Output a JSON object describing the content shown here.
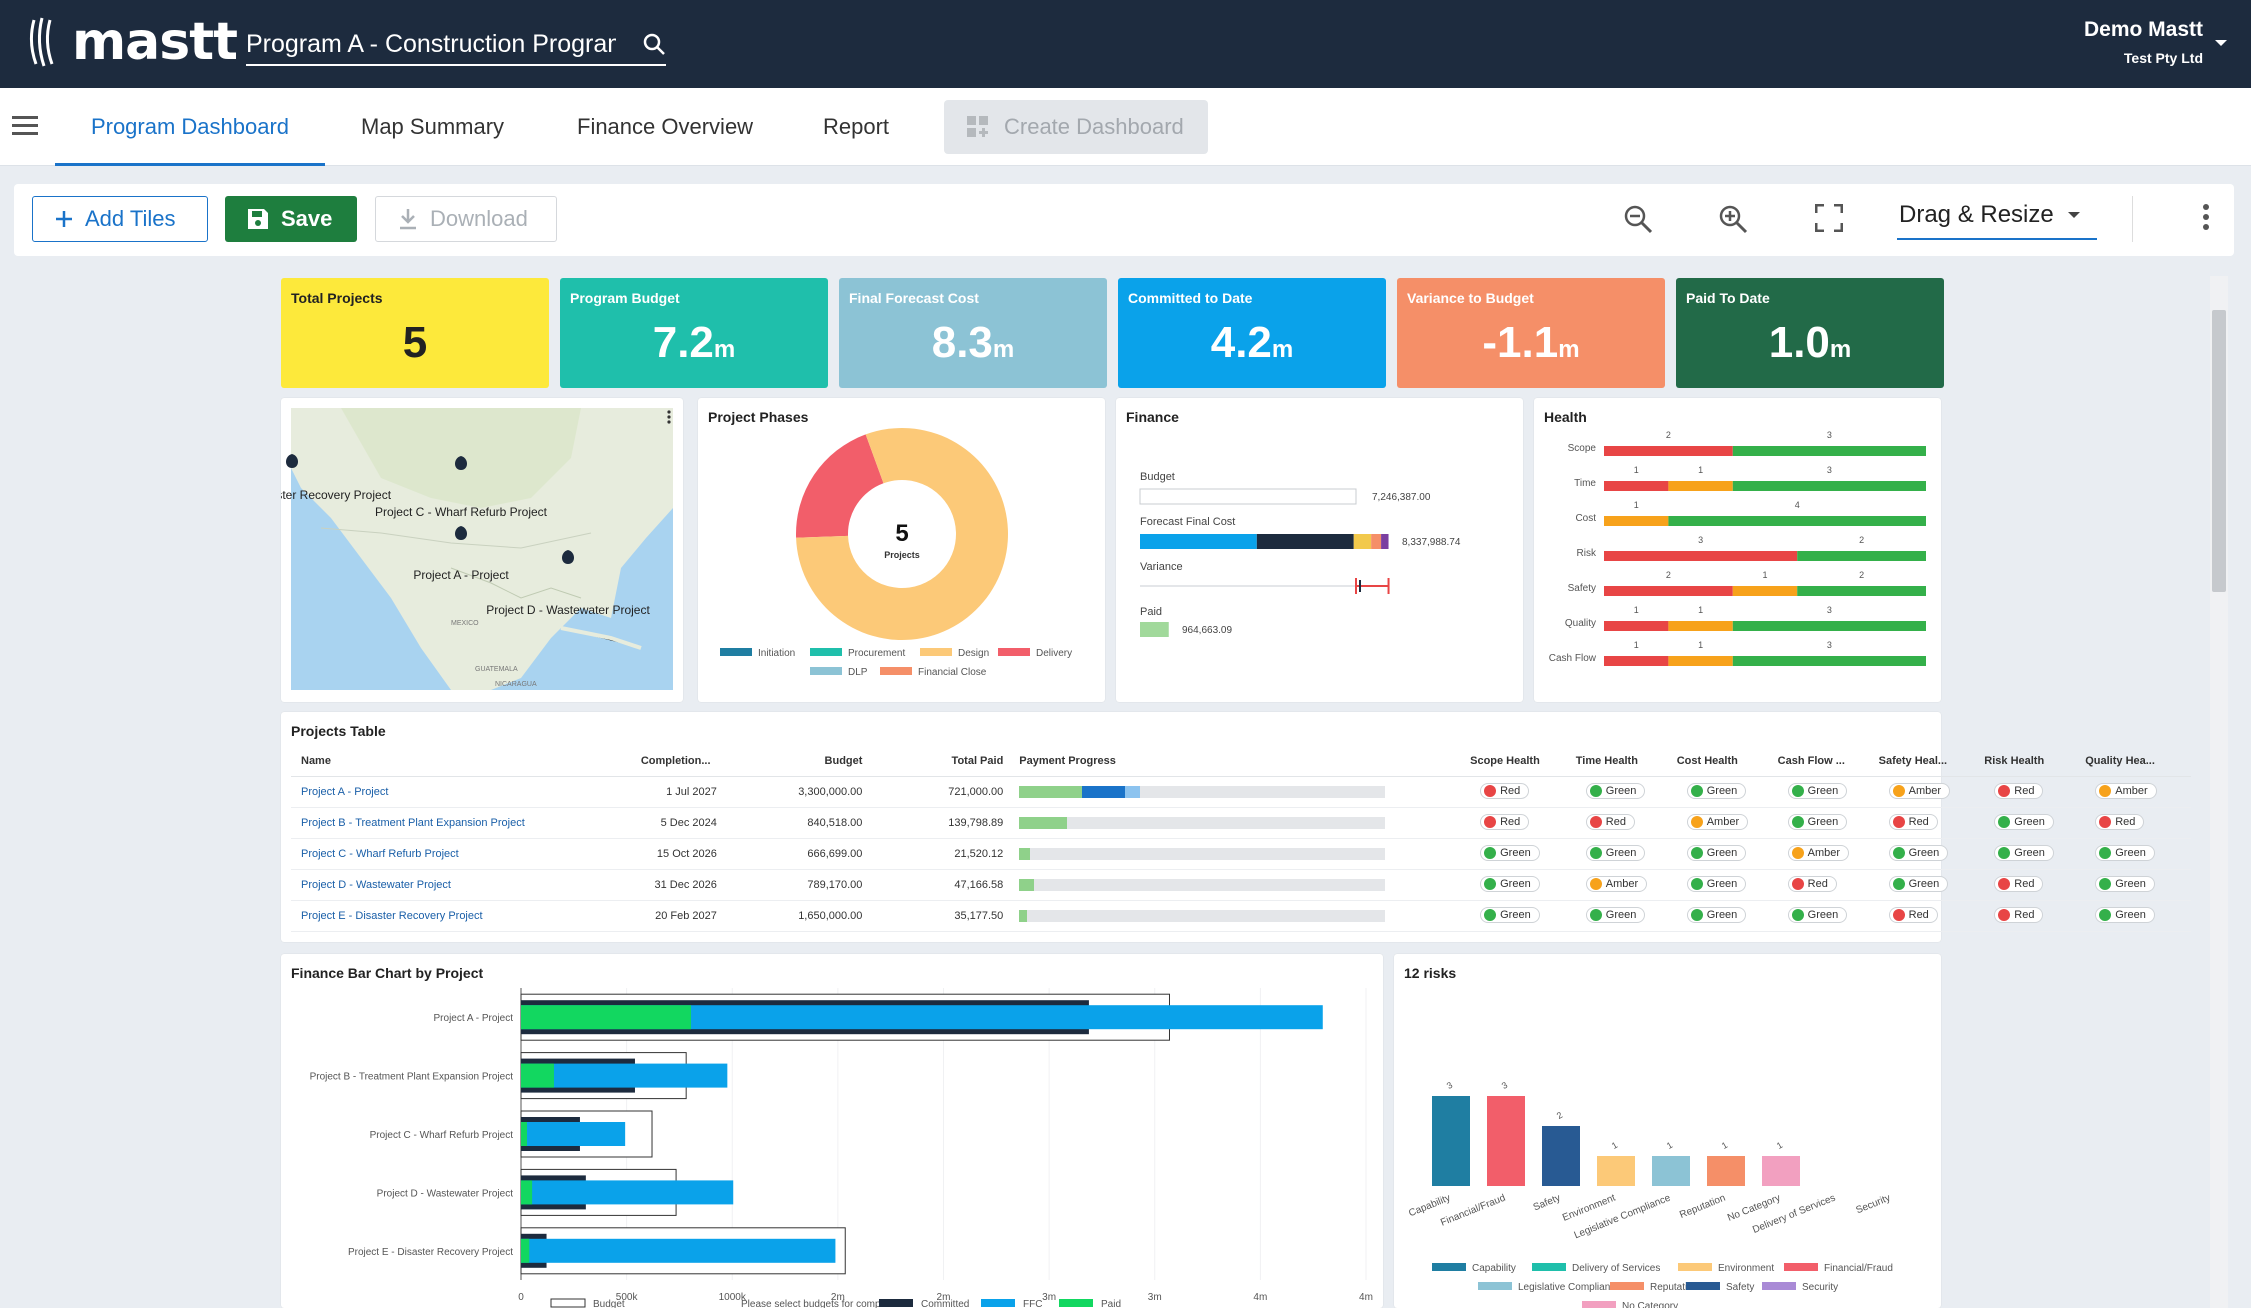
{
  "header": {
    "brand": "mastt",
    "program": "Program A - Construction Program",
    "user_name": "Demo Mastt",
    "company": "Test Pty Ltd"
  },
  "nav": {
    "tabs": [
      "Program Dashboard",
      "Map Summary",
      "Finance Overview",
      "Report"
    ],
    "create": "Create Dashboard"
  },
  "toolbar": {
    "add": "Add Tiles",
    "save": "Save",
    "download": "Download",
    "mode": "Drag & Resize"
  },
  "kpis": [
    {
      "title": "Total Projects",
      "value": "5",
      "unit": "",
      "color": "#fde93b",
      "text": "#222222"
    },
    {
      "title": "Program Budget",
      "value": "7.2",
      "unit": "m",
      "color": "#1fbfab",
      "text": "#ffffff"
    },
    {
      "title": "Final Forecast Cost",
      "value": "8.3",
      "unit": "m",
      "color": "#8cc3d5",
      "text": "#ffffff"
    },
    {
      "title": "Committed to Date",
      "value": "4.2",
      "unit": "m",
      "color": "#0aa2ea",
      "text": "#ffffff"
    },
    {
      "title": "Variance to Budget",
      "value": "-1.1",
      "unit": "m",
      "color": "#f58f68",
      "text": "#ffffff"
    },
    {
      "title": "Paid To Date",
      "value": "1.0",
      "unit": "m",
      "color": "#226a48",
      "text": "#ffffff"
    }
  ],
  "map": {
    "labels": [
      "Project E - Disaster Recovery Project",
      "Project C - Wharf Refurb Project",
      "Project A - Project",
      "Project D - Wastewater Project"
    ],
    "places": [
      "MEXICO",
      "GUATEMALA",
      "NICARAGUA"
    ]
  },
  "phases": {
    "title": "Project Phases",
    "center_value": "5",
    "center_label": "Projects",
    "chart_data": {
      "type": "pie",
      "categories": [
        "Initiation",
        "Procurement",
        "Design",
        "Delivery",
        "DLP",
        "Financial Close"
      ],
      "values": [
        0,
        0,
        4,
        1,
        0,
        0
      ],
      "colors": [
        "#1f7ea2",
        "#1fbfab",
        "#fcc978",
        "#f25e6a",
        "#8cc3d5",
        "#f58f68"
      ]
    }
  },
  "finance": {
    "title": "Finance",
    "budget_label": "Budget",
    "budget_value": "7,246,387.00",
    "forecast_label": "Forecast Final Cost",
    "forecast_value": "8,337,988.74",
    "variance_label": "Variance",
    "paid_label": "Paid",
    "paid_value": "964,663.09",
    "chart_data": {
      "type": "bar",
      "categories": [
        "Budget",
        "Forecast Final Cost",
        "Paid"
      ],
      "values": [
        7246387.0,
        8337988.74,
        964663.09
      ],
      "variance": -1091601.74
    }
  },
  "health": {
    "title": "Health",
    "chart_data": {
      "type": "bar",
      "stacked": true,
      "categories": [
        "Scope",
        "Time",
        "Cost",
        "Risk",
        "Safety",
        "Quality",
        "Cash Flow"
      ],
      "series": [
        {
          "name": "Red",
          "color": "#e84545",
          "values": [
            2,
            1,
            0,
            3,
            2,
            1,
            1
          ]
        },
        {
          "name": "Amber",
          "color": "#f7a21b",
          "values": [
            0,
            1,
            1,
            0,
            1,
            1,
            1
          ]
        },
        {
          "name": "Green",
          "color": "#34b04a",
          "values": [
            3,
            3,
            4,
            2,
            2,
            3,
            3
          ]
        }
      ]
    }
  },
  "projects_table": {
    "title": "Projects Table",
    "columns": [
      "Name",
      "Completion...",
      "Budget",
      "Total Paid",
      "Payment Progress",
      "Scope Health",
      "Time Health",
      "Cost Health",
      "Cash Flow ...",
      "Safety Heal...",
      "Risk Health",
      "Quality Hea..."
    ],
    "rows": [
      {
        "name": "Project A - Project",
        "completion": "1 Jul 2027",
        "budget": "3,300,000.00",
        "paid": "721,000.00",
        "progress": [
          0.17,
          0.12,
          0.04
        ],
        "health": [
          "Red",
          "Green",
          "Green",
          "Green",
          "Amber",
          "Red",
          "Amber"
        ]
      },
      {
        "name": "Project B - Treatment Plant Expansion Project",
        "completion": "5 Dec 2024",
        "budget": "840,518.00",
        "paid": "139,798.89",
        "progress": [
          0.13,
          0.0,
          0.0
        ],
        "health": [
          "Red",
          "Red",
          "Amber",
          "Green",
          "Red",
          "Green",
          "Red"
        ]
      },
      {
        "name": "Project C - Wharf Refurb Project",
        "completion": "15 Oct 2026",
        "budget": "666,699.00",
        "paid": "21,520.12",
        "progress": [
          0.03,
          0.0,
          0.0
        ],
        "health": [
          "Green",
          "Green",
          "Green",
          "Amber",
          "Green",
          "Green",
          "Green"
        ]
      },
      {
        "name": "Project D - Wastewater Project",
        "completion": "31 Dec 2026",
        "budget": "789,170.00",
        "paid": "47,166.58",
        "progress": [
          0.04,
          0.0,
          0.0
        ],
        "health": [
          "Green",
          "Amber",
          "Green",
          "Red",
          "Green",
          "Red",
          "Green"
        ]
      },
      {
        "name": "Project E - Disaster Recovery Project",
        "completion": "20 Feb 2027",
        "budget": "1,650,000.00",
        "paid": "35,177.50",
        "progress": [
          0.02,
          0.0,
          0.0
        ],
        "health": [
          "Green",
          "Green",
          "Green",
          "Green",
          "Red",
          "Red",
          "Green"
        ]
      }
    ]
  },
  "finance_bar": {
    "title": "Finance Bar Chart by Project",
    "chart_data": {
      "type": "bar",
      "orientation": "horizontal",
      "categories": [
        "Project A - Project",
        "Project B - Treatment Plant Expansion Project",
        "Project C - Wharf Refurb Project",
        "Project D - Wastewater Project",
        "Project E - Disaster Recovery Project"
      ],
      "series": [
        {
          "name": "Budget",
          "values": [
            3300000,
            840518,
            666699,
            789170,
            1650000
          ]
        },
        {
          "name": "Committed",
          "values": [
            2890000,
            580000,
            300000,
            330000,
            130000
          ]
        },
        {
          "name": "FFC",
          "values": [
            4080000,
            1050000,
            530000,
            1080000,
            1600000
          ]
        },
        {
          "name": "Paid",
          "values": [
            721000,
            139799,
            21520,
            47167,
            35178
          ]
        }
      ],
      "xticks": [
        "0",
        "500k",
        "1000k",
        "2m",
        "2m",
        "3m",
        "3m",
        "4m",
        "4m"
      ],
      "xlim": [
        0,
        4300000
      ],
      "legend": [
        "Budget",
        "Please select budgets for comparison",
        "Committed",
        "FFC",
        "Paid"
      ]
    }
  },
  "risks": {
    "title": "12 risks",
    "chart_data": {
      "type": "bar",
      "categories": [
        "Capability",
        "Financial/Fraud",
        "Safety",
        "Environment",
        "Legislative Compliance",
        "Reputation",
        "No Category",
        "Delivery of Services",
        "Security"
      ],
      "values": [
        3,
        3,
        2,
        1,
        1,
        1,
        1,
        0,
        0
      ],
      "colors": [
        "#1f7ea2",
        "#f25e6a",
        "#285a93",
        "#fcc978",
        "#8cc3d5",
        "#f58f68",
        "#f2a0c0",
        "#1fbfab",
        "#a98ad6"
      ],
      "legend": [
        "Capability",
        "Delivery of Services",
        "Environment",
        "Financial/Fraud",
        "Legislative Compliance",
        "Reputation",
        "Safety",
        "Security",
        "No Category"
      ]
    }
  }
}
